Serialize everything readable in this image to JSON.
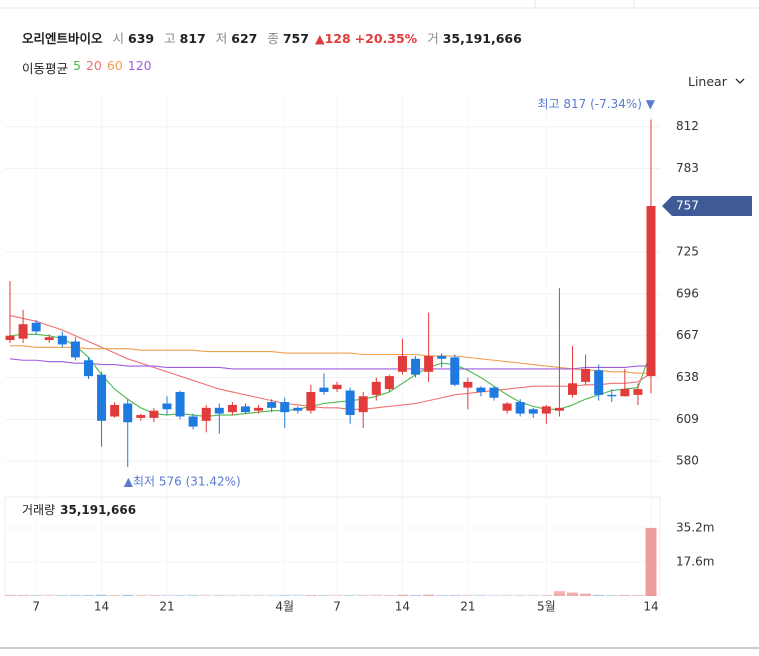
{
  "header": {
    "name": "오리엔트바이오",
    "items": [
      {
        "label": "시",
        "value": "639"
      },
      {
        "label": "고",
        "value": "817"
      },
      {
        "label": "저",
        "value": "627"
      },
      {
        "label": "종",
        "value": "757"
      }
    ],
    "change": "▲128",
    "change_pct": "+20.35%",
    "volume_label": "거",
    "volume": "35,191,666"
  },
  "chart_data": {
    "type": "candlestick",
    "scale_label": "Linear",
    "categories": [
      null,
      null,
      "7",
      null,
      null,
      null,
      null,
      "14",
      null,
      null,
      null,
      null,
      "21",
      null,
      null,
      null,
      null,
      null,
      null,
      null,
      null,
      "4월",
      null,
      null,
      null,
      "7",
      null,
      null,
      null,
      null,
      "14",
      null,
      null,
      null,
      null,
      "21",
      null,
      null,
      null,
      null,
      null,
      "5월",
      null,
      null,
      null,
      null,
      null,
      null,
      null,
      "14"
    ],
    "open": [
      664,
      665,
      676,
      664,
      667,
      663,
      650,
      640,
      611,
      620,
      610,
      610,
      620,
      628,
      611,
      608,
      617,
      614,
      618,
      615,
      621,
      621,
      617,
      615,
      631,
      630,
      629,
      614,
      626,
      630,
      642,
      651,
      642,
      653,
      652,
      631,
      631,
      631,
      615,
      621,
      616,
      613,
      615,
      626,
      635,
      643,
      626,
      625,
      626,
      639
    ],
    "high": [
      705,
      685,
      678,
      668,
      670,
      666,
      652,
      642,
      621,
      623,
      613,
      617,
      625,
      629,
      613,
      619,
      620,
      621,
      620,
      619,
      623,
      624,
      618,
      633,
      641,
      635,
      631,
      628,
      638,
      640,
      665,
      653,
      683,
      655,
      654,
      638,
      632,
      632,
      621,
      623,
      617,
      619,
      700,
      660,
      654,
      647,
      630,
      644,
      634,
      817
    ],
    "low": [
      662,
      662,
      668,
      662,
      659,
      650,
      637,
      590,
      610,
      576,
      608,
      607,
      612,
      609,
      602,
      600,
      599,
      612,
      613,
      613,
      614,
      603,
      613,
      613,
      626,
      628,
      606,
      603,
      622,
      628,
      640,
      638,
      635,
      645,
      632,
      616,
      625,
      622,
      613,
      611,
      610,
      606,
      611,
      624,
      633,
      622,
      621,
      625,
      619,
      627
    ],
    "close": [
      667,
      675,
      670,
      666,
      661,
      652,
      639,
      608,
      619,
      607,
      612,
      615,
      616,
      611,
      604,
      617,
      613,
      619,
      614,
      617,
      617,
      614,
      615,
      628,
      628,
      633,
      612,
      625,
      635,
      639,
      653,
      640,
      653,
      651,
      633,
      635,
      628,
      624,
      620,
      613,
      613,
      618,
      617,
      634,
      644,
      626,
      625,
      630,
      630,
      757
    ],
    "up_color": "#e23b3b",
    "down_color": "#1f7ae0",
    "ylim": [
      560,
      834
    ],
    "yticks": [
      580,
      609,
      638,
      667,
      696,
      725,
      783,
      812
    ],
    "grid": true,
    "annotations": {
      "high": "최고 817 (-7.34%) ▼",
      "low": "▲최저 576 (31.42%)"
    },
    "ma": {
      "title": "이동평균",
      "series": [
        {
          "name": "5",
          "color": "#4cb84c",
          "values": [
            667,
            668,
            668,
            667,
            665,
            660,
            652,
            640,
            630,
            623,
            617,
            613,
            612,
            613,
            612,
            611,
            612,
            612,
            613,
            614,
            615,
            615,
            616,
            618,
            620,
            621,
            622,
            623,
            625,
            628,
            634,
            640,
            645,
            648,
            647,
            643,
            638,
            632,
            626,
            621,
            618,
            616,
            616,
            619,
            623,
            626,
            629,
            630,
            631,
            656
          ]
        },
        {
          "name": "20",
          "color": "#f07070",
          "values": [
            681,
            679,
            677,
            674,
            671,
            667,
            663,
            659,
            655,
            651,
            648,
            645,
            642,
            639,
            636,
            633,
            630,
            628,
            626,
            624,
            622,
            620,
            619,
            618,
            617,
            617,
            616,
            616,
            617,
            618,
            619,
            620,
            622,
            624,
            626,
            627,
            628,
            629,
            630,
            631,
            632,
            632,
            632,
            632,
            633,
            633,
            634,
            634,
            635,
            641
          ]
        },
        {
          "name": "60",
          "color": "#f0a050",
          "values": [
            660,
            660,
            659,
            659,
            659,
            659,
            658,
            658,
            658,
            658,
            657,
            657,
            657,
            657,
            657,
            656,
            656,
            656,
            656,
            656,
            656,
            655,
            655,
            655,
            655,
            655,
            655,
            654,
            654,
            654,
            654,
            654,
            653,
            653,
            653,
            652,
            651,
            650,
            649,
            648,
            647,
            646,
            645,
            644,
            643,
            643,
            642,
            642,
            641,
            641
          ]
        },
        {
          "name": "120",
          "color": "#a05ee0",
          "values": [
            651,
            650,
            650,
            649,
            649,
            648,
            648,
            647,
            647,
            646,
            646,
            646,
            645,
            645,
            645,
            645,
            645,
            644,
            644,
            644,
            644,
            644,
            644,
            644,
            644,
            644,
            644,
            644,
            644,
            644,
            644,
            644,
            644,
            644,
            644,
            644,
            644,
            644,
            644,
            644,
            644,
            644,
            644,
            644,
            645,
            645,
            645,
            645,
            646,
            646
          ]
        }
      ]
    },
    "volume": {
      "title": "거래량",
      "total": "35,191,666",
      "values": [
        400000,
        350000,
        300000,
        250000,
        300000,
        350000,
        400000,
        600000,
        300000,
        500000,
        250000,
        300000,
        250000,
        300000,
        300000,
        250000,
        250000,
        200000,
        200000,
        200000,
        200000,
        350000,
        250000,
        400000,
        300000,
        250000,
        300000,
        250000,
        300000,
        300000,
        600000,
        400000,
        700000,
        300000,
        350000,
        250000,
        250000,
        200000,
        200000,
        200000,
        200000,
        300000,
        2500000,
        1800000,
        1200000,
        500000,
        300000,
        400000,
        350000,
        35191666
      ],
      "ylim": [
        0,
        51200000
      ],
      "yticks": [
        {
          "value": 17600000,
          "label": "17.6m"
        },
        {
          "value": 35200000,
          "label": "35.2m"
        }
      ]
    }
  }
}
